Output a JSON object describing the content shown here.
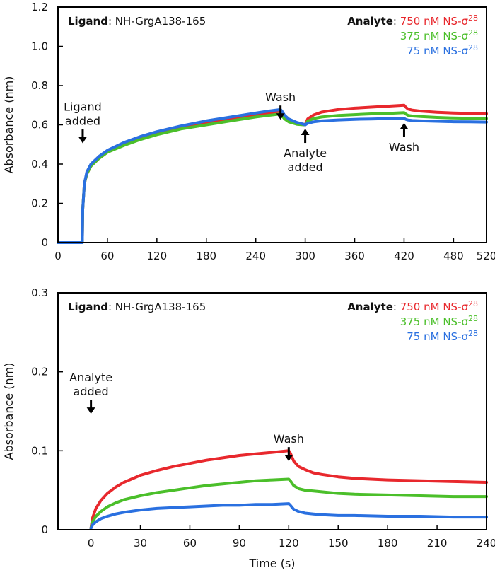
{
  "chart_data": [
    {
      "type": "line",
      "title": "",
      "xlabel": "",
      "ylabel": "Absorbance (nm)",
      "xlim": [
        0,
        520
      ],
      "ylim": [
        0,
        1.2
      ],
      "x_ticks": [
        "0",
        "60",
        "120",
        "180",
        "240",
        "300",
        "360",
        "420",
        "480",
        "520"
      ],
      "x_tick_values": [
        0,
        60,
        120,
        180,
        240,
        300,
        360,
        420,
        480,
        520
      ],
      "y_ticks": [
        "0",
        "0.2",
        "0.4",
        "0.6",
        "0.8",
        "1.0",
        "1.2"
      ],
      "y_tick_values": [
        0,
        0.2,
        0.4,
        0.6,
        0.8,
        1.0,
        1.2
      ],
      "ligand_label": "Ligand",
      "ligand_value": ": NH-GrgA138-165",
      "analyte_label": "Analyte",
      "analyte_suffix": ":",
      "series": [
        {
          "name": "750 nM NS-σ28",
          "name_main": "750 nM NS-σ",
          "name_sup": "28",
          "color": "#e8282d",
          "x": [
            0,
            29.5,
            30,
            32,
            35,
            40,
            50,
            60,
            80,
            100,
            120,
            150,
            180,
            210,
            240,
            255,
            270,
            272,
            275,
            280,
            290,
            298,
            300,
            303,
            310,
            320,
            340,
            360,
            380,
            400,
            420,
            422,
            425,
            430,
            440,
            460,
            480,
            500,
            520
          ],
          "y": [
            0,
            0,
            0.17,
            0.3,
            0.35,
            0.39,
            0.43,
            0.46,
            0.5,
            0.53,
            0.555,
            0.585,
            0.61,
            0.63,
            0.65,
            0.66,
            0.67,
            0.66,
            0.64,
            0.625,
            0.61,
            0.603,
            0.6,
            0.63,
            0.65,
            0.665,
            0.678,
            0.685,
            0.69,
            0.695,
            0.7,
            0.69,
            0.68,
            0.675,
            0.67,
            0.664,
            0.66,
            0.658,
            0.657
          ]
        },
        {
          "name": "375 nM NS-σ28",
          "name_main": "375 nM NS-σ",
          "name_sup": "28",
          "color": "#4bbf2a",
          "x": [
            0,
            29.5,
            30,
            32,
            35,
            40,
            50,
            60,
            80,
            100,
            120,
            150,
            180,
            210,
            240,
            255,
            270,
            272,
            275,
            280,
            290,
            298,
            300,
            303,
            310,
            320,
            340,
            360,
            380,
            400,
            420,
            422,
            425,
            430,
            440,
            460,
            480,
            500,
            520
          ],
          "y": [
            0,
            0,
            0.17,
            0.3,
            0.35,
            0.39,
            0.43,
            0.46,
            0.495,
            0.525,
            0.55,
            0.58,
            0.6,
            0.62,
            0.64,
            0.648,
            0.655,
            0.645,
            0.63,
            0.615,
            0.603,
            0.6,
            0.6,
            0.618,
            0.632,
            0.64,
            0.648,
            0.652,
            0.656,
            0.658,
            0.662,
            0.655,
            0.648,
            0.645,
            0.642,
            0.638,
            0.635,
            0.633,
            0.632
          ]
        },
        {
          "name": "75 nM NS-σ28",
          "name_main": "75 nM NS-σ",
          "name_sup": "28",
          "color": "#2a70e0",
          "x": [
            0,
            29.5,
            30,
            32,
            35,
            40,
            50,
            60,
            80,
            100,
            120,
            150,
            180,
            210,
            240,
            255,
            270,
            272,
            275,
            280,
            290,
            298,
            300,
            303,
            310,
            320,
            340,
            360,
            380,
            400,
            420,
            422,
            425,
            430,
            440,
            460,
            480,
            500,
            520
          ],
          "y": [
            0,
            0,
            0.17,
            0.3,
            0.36,
            0.4,
            0.44,
            0.47,
            0.51,
            0.54,
            0.565,
            0.595,
            0.62,
            0.64,
            0.66,
            0.67,
            0.678,
            0.668,
            0.648,
            0.63,
            0.612,
            0.603,
            0.6,
            0.608,
            0.615,
            0.62,
            0.625,
            0.628,
            0.63,
            0.632,
            0.633,
            0.628,
            0.624,
            0.622,
            0.62,
            0.618,
            0.616,
            0.615,
            0.614
          ]
        }
      ],
      "annotations": [
        {
          "lines": [
            "Ligand",
            "added"
          ],
          "arrow": "down",
          "x": 30,
          "y": 0.6
        },
        {
          "lines": [
            "Wash"
          ],
          "arrow": "down",
          "x": 270,
          "y": 0.72
        },
        {
          "lines": [
            "Analyte",
            "added"
          ],
          "arrow": "up",
          "x": 300,
          "y": 0.58
        },
        {
          "lines": [
            "Wash"
          ],
          "arrow": "up",
          "x": 420,
          "y": 0.61
        }
      ]
    },
    {
      "type": "line",
      "title": "",
      "xlabel": "Time (s)",
      "ylabel": "Absorbance (nm)",
      "xlim": [
        -20,
        240
      ],
      "ylim": [
        0,
        0.3
      ],
      "x_ticks": [
        "0",
        "30",
        "60",
        "90",
        "120",
        "150",
        "180",
        "210",
        "240"
      ],
      "x_tick_values": [
        0,
        30,
        60,
        90,
        120,
        150,
        180,
        210,
        240
      ],
      "y_ticks": [
        "0",
        "0.1",
        "0.2",
        "0.3"
      ],
      "y_tick_values": [
        0,
        0.1,
        0.2,
        0.3
      ],
      "ligand_label": "Ligand",
      "ligand_value": ": NH-GrgA138-165",
      "analyte_label": "Analyte",
      "analyte_suffix": ":",
      "series": [
        {
          "name": "750 nM NS-σ28",
          "name_main": "750 nM NS-σ",
          "name_sup": "28",
          "color": "#e8282d",
          "x": [
            0,
            1,
            3,
            6,
            10,
            15,
            20,
            30,
            40,
            50,
            60,
            70,
            80,
            90,
            100,
            110,
            120,
            121,
            123,
            126,
            130,
            135,
            140,
            150,
            160,
            180,
            200,
            220,
            240
          ],
          "y": [
            0.002,
            0.015,
            0.027,
            0.037,
            0.046,
            0.054,
            0.06,
            0.069,
            0.075,
            0.08,
            0.084,
            0.088,
            0.091,
            0.094,
            0.096,
            0.098,
            0.1,
            0.097,
            0.087,
            0.08,
            0.076,
            0.072,
            0.07,
            0.067,
            0.065,
            0.063,
            0.062,
            0.061,
            0.06
          ]
        },
        {
          "name": "375 nM NS-σ28",
          "name_main": "375 nM NS-σ",
          "name_sup": "28",
          "color": "#4bbf2a",
          "x": [
            0,
            1,
            3,
            6,
            10,
            15,
            20,
            30,
            40,
            50,
            60,
            70,
            80,
            90,
            100,
            110,
            120,
            121,
            123,
            126,
            130,
            135,
            140,
            150,
            160,
            180,
            200,
            220,
            240
          ],
          "y": [
            0.002,
            0.01,
            0.017,
            0.023,
            0.029,
            0.034,
            0.038,
            0.043,
            0.047,
            0.05,
            0.053,
            0.056,
            0.058,
            0.06,
            0.062,
            0.063,
            0.064,
            0.062,
            0.056,
            0.052,
            0.05,
            0.049,
            0.048,
            0.046,
            0.045,
            0.044,
            0.043,
            0.042,
            0.042
          ]
        },
        {
          "name": "75 nM NS-σ28",
          "name_main": "75 nM NS-σ",
          "name_sup": "28",
          "color": "#2a70e0",
          "x": [
            0,
            1,
            3,
            6,
            10,
            15,
            20,
            30,
            40,
            50,
            60,
            70,
            80,
            90,
            100,
            110,
            120,
            121,
            123,
            126,
            130,
            135,
            140,
            150,
            160,
            180,
            200,
            220,
            240
          ],
          "y": [
            0.002,
            0.006,
            0.01,
            0.014,
            0.017,
            0.02,
            0.022,
            0.025,
            0.027,
            0.028,
            0.029,
            0.03,
            0.031,
            0.031,
            0.032,
            0.032,
            0.033,
            0.031,
            0.026,
            0.023,
            0.021,
            0.02,
            0.019,
            0.018,
            0.018,
            0.017,
            0.017,
            0.016,
            0.016
          ]
        }
      ],
      "annotations": [
        {
          "lines": [
            "Analyte",
            "added"
          ],
          "arrow": "down",
          "x": 0,
          "y": 0.17
        },
        {
          "lines": [
            "Wash"
          ],
          "arrow": "down",
          "x": 120,
          "y": 0.11
        }
      ]
    }
  ]
}
